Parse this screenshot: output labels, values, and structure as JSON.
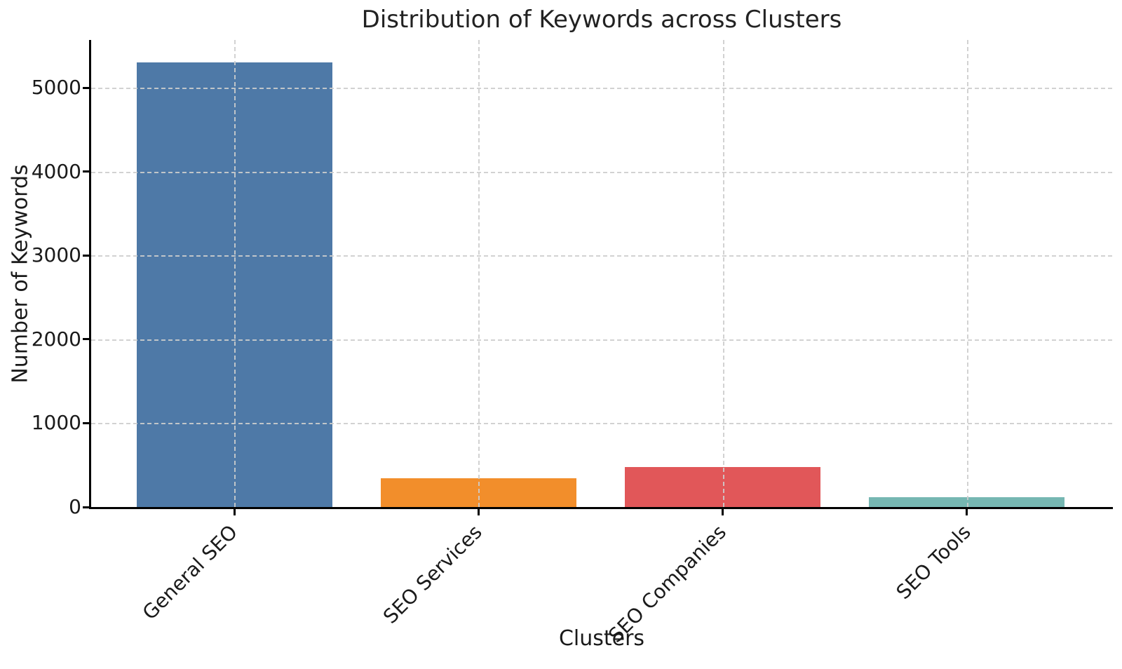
{
  "chart_data": {
    "type": "bar",
    "title": "Distribution of Keywords across Clusters",
    "xlabel": "Clusters",
    "ylabel": "Number of Keywords",
    "categories": [
      "General SEO",
      "SEO Services",
      "SEO Companies",
      "SEO Tools"
    ],
    "values": [
      5300,
      340,
      480,
      120
    ],
    "bar_colors": [
      "#4E79A7",
      "#F28E2B",
      "#E15759",
      "#76B7B2"
    ],
    "ylim": [
      0,
      5570
    ],
    "yticks": [
      0,
      1000,
      2000,
      3000,
      4000,
      5000
    ],
    "x_tick_rotation_deg": 45,
    "grid": "dashed-both-axes",
    "grid_color": "#cdcdcd",
    "spine_color": "#000000",
    "text_color": "#1a1a1a",
    "legend": "none",
    "background_color": "#ffffff"
  }
}
